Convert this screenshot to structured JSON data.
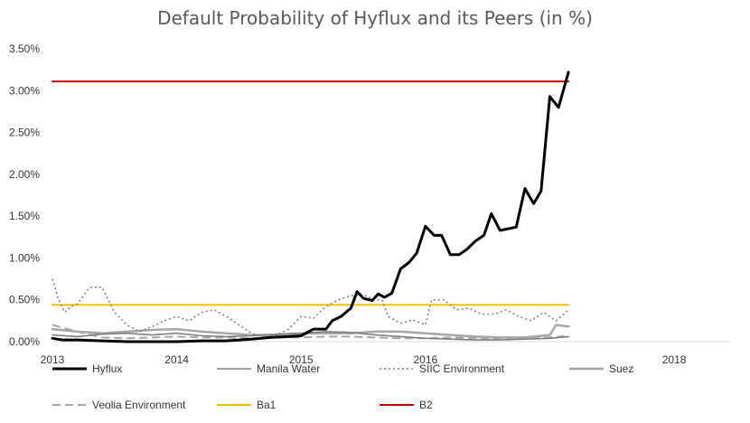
{
  "chart_data": {
    "type": "line",
    "title": "Default Probability of Hyflux and its Peers (in %)",
    "xlabel": "",
    "ylabel": "",
    "x_tick_labels": [
      "2013",
      "2014",
      "2015",
      "2016",
      "2018"
    ],
    "x_tick_positions": [
      2013.0,
      2014.0,
      2015.0,
      2016.0,
      2018.0
    ],
    "xlim": [
      2013.0,
      2018.45
    ],
    "y_tick_labels": [
      "0.00%",
      "0.50%",
      "1.00%",
      "1.50%",
      "2.00%",
      "2.50%",
      "3.00%",
      "3.50%"
    ],
    "y_tick_values": [
      0,
      0.5,
      1.0,
      1.5,
      2.0,
      2.5,
      3.0,
      3.5
    ],
    "ylim": [
      0,
      3.5
    ],
    "grid": false,
    "legend_position": "bottom",
    "series": [
      {
        "name": "Hyflux",
        "style": "solid",
        "color": "#000000",
        "width": 3,
        "points": [
          [
            2013.0,
            0.04
          ],
          [
            2013.08,
            0.02
          ],
          [
            2013.2,
            0.02
          ],
          [
            2013.4,
            0.01
          ],
          [
            2013.6,
            0.0
          ],
          [
            2013.8,
            0.0
          ],
          [
            2014.0,
            0.0
          ],
          [
            2014.2,
            0.01
          ],
          [
            2014.4,
            0.01
          ],
          [
            2014.6,
            0.03
          ],
          [
            2014.75,
            0.05
          ],
          [
            2014.9,
            0.06
          ],
          [
            2015.0,
            0.07
          ],
          [
            2015.1,
            0.15
          ],
          [
            2015.2,
            0.15
          ],
          [
            2015.25,
            0.25
          ],
          [
            2015.32,
            0.3
          ],
          [
            2015.4,
            0.4
          ],
          [
            2015.45,
            0.6
          ],
          [
            2015.5,
            0.52
          ],
          [
            2015.57,
            0.49
          ],
          [
            2015.62,
            0.57
          ],
          [
            2015.67,
            0.53
          ],
          [
            2015.73,
            0.58
          ],
          [
            2015.8,
            0.87
          ],
          [
            2015.87,
            0.95
          ],
          [
            2015.93,
            1.06
          ],
          [
            2016.0,
            1.38
          ],
          [
            2016.07,
            1.27
          ],
          [
            2016.13,
            1.27
          ],
          [
            2016.2,
            1.04
          ],
          [
            2016.27,
            1.04
          ],
          [
            2016.33,
            1.1
          ],
          [
            2016.4,
            1.2
          ],
          [
            2016.47,
            1.27
          ],
          [
            2016.53,
            1.53
          ],
          [
            2016.6,
            1.33
          ],
          [
            2016.67,
            1.35
          ],
          [
            2016.73,
            1.37
          ],
          [
            2016.8,
            1.83
          ],
          [
            2016.87,
            1.65
          ],
          [
            2016.93,
            1.8
          ],
          [
            2017.0,
            2.93
          ],
          [
            2017.07,
            2.8
          ],
          [
            2017.15,
            3.22
          ]
        ]
      },
      {
        "name": "Manila Water",
        "style": "solid",
        "color": "#7f7f7f",
        "width": 1.6,
        "points": [
          [
            2013.0,
            0.08
          ],
          [
            2013.2,
            0.06
          ],
          [
            2013.4,
            0.09
          ],
          [
            2013.6,
            0.1
          ],
          [
            2013.8,
            0.08
          ],
          [
            2014.0,
            0.1
          ],
          [
            2014.2,
            0.07
          ],
          [
            2014.4,
            0.06
          ],
          [
            2014.6,
            0.07
          ],
          [
            2014.8,
            0.09
          ],
          [
            2015.0,
            0.1
          ],
          [
            2015.2,
            0.12
          ],
          [
            2015.4,
            0.11
          ],
          [
            2015.6,
            0.08
          ],
          [
            2015.8,
            0.06
          ],
          [
            2016.0,
            0.04
          ],
          [
            2016.2,
            0.03
          ],
          [
            2016.4,
            0.02
          ],
          [
            2016.6,
            0.02
          ],
          [
            2016.8,
            0.03
          ],
          [
            2017.0,
            0.04
          ],
          [
            2017.15,
            0.06
          ]
        ]
      },
      {
        "name": "SIIC Environment",
        "style": "dotted",
        "color": "#7f7f7f",
        "width": 1.6,
        "points": [
          [
            2013.0,
            0.75
          ],
          [
            2013.05,
            0.5
          ],
          [
            2013.1,
            0.35
          ],
          [
            2013.15,
            0.42
          ],
          [
            2013.2,
            0.45
          ],
          [
            2013.3,
            0.65
          ],
          [
            2013.4,
            0.65
          ],
          [
            2013.5,
            0.35
          ],
          [
            2013.6,
            0.2
          ],
          [
            2013.7,
            0.12
          ],
          [
            2013.8,
            0.18
          ],
          [
            2013.9,
            0.25
          ],
          [
            2014.0,
            0.3
          ],
          [
            2014.1,
            0.25
          ],
          [
            2014.2,
            0.35
          ],
          [
            2014.3,
            0.38
          ],
          [
            2014.4,
            0.3
          ],
          [
            2014.5,
            0.2
          ],
          [
            2014.6,
            0.1
          ],
          [
            2014.7,
            0.05
          ],
          [
            2014.8,
            0.08
          ],
          [
            2014.9,
            0.15
          ],
          [
            2015.0,
            0.3
          ],
          [
            2015.1,
            0.28
          ],
          [
            2015.2,
            0.42
          ],
          [
            2015.3,
            0.5
          ],
          [
            2015.4,
            0.55
          ],
          [
            2015.5,
            0.56
          ],
          [
            2015.6,
            0.5
          ],
          [
            2015.65,
            0.5
          ],
          [
            2015.7,
            0.3
          ],
          [
            2015.8,
            0.22
          ],
          [
            2015.9,
            0.26
          ],
          [
            2016.0,
            0.2
          ],
          [
            2016.05,
            0.5
          ],
          [
            2016.15,
            0.5
          ],
          [
            2016.25,
            0.38
          ],
          [
            2016.35,
            0.4
          ],
          [
            2016.45,
            0.33
          ],
          [
            2016.55,
            0.33
          ],
          [
            2016.65,
            0.38
          ],
          [
            2016.75,
            0.3
          ],
          [
            2016.85,
            0.25
          ],
          [
            2016.95,
            0.35
          ],
          [
            2017.05,
            0.25
          ],
          [
            2017.15,
            0.38
          ]
        ]
      },
      {
        "name": "Suez",
        "style": "solid",
        "color": "#a6a6a6",
        "width": 2.5,
        "points": [
          [
            2013.0,
            0.15
          ],
          [
            2013.2,
            0.12
          ],
          [
            2013.4,
            0.1
          ],
          [
            2013.6,
            0.12
          ],
          [
            2013.8,
            0.14
          ],
          [
            2014.0,
            0.15
          ],
          [
            2014.2,
            0.12
          ],
          [
            2014.4,
            0.1
          ],
          [
            2014.6,
            0.08
          ],
          [
            2014.8,
            0.08
          ],
          [
            2015.0,
            0.1
          ],
          [
            2015.2,
            0.1
          ],
          [
            2015.4,
            0.1
          ],
          [
            2015.6,
            0.12
          ],
          [
            2015.8,
            0.12
          ],
          [
            2016.0,
            0.1
          ],
          [
            2016.2,
            0.08
          ],
          [
            2016.4,
            0.06
          ],
          [
            2016.6,
            0.05
          ],
          [
            2016.8,
            0.05
          ],
          [
            2017.0,
            0.08
          ],
          [
            2017.05,
            0.2
          ],
          [
            2017.15,
            0.18
          ]
        ]
      },
      {
        "name": "Veolia Environment",
        "style": "dashed",
        "color": "#a6a6a6",
        "width": 2,
        "points": [
          [
            2013.0,
            0.2
          ],
          [
            2013.2,
            0.12
          ],
          [
            2013.4,
            0.05
          ],
          [
            2013.6,
            0.04
          ],
          [
            2013.8,
            0.05
          ],
          [
            2014.0,
            0.06
          ],
          [
            2014.2,
            0.05
          ],
          [
            2014.4,
            0.05
          ],
          [
            2014.6,
            0.04
          ],
          [
            2014.8,
            0.05
          ],
          [
            2015.0,
            0.05
          ],
          [
            2015.2,
            0.06
          ],
          [
            2015.4,
            0.06
          ],
          [
            2015.6,
            0.05
          ],
          [
            2015.8,
            0.04
          ],
          [
            2016.0,
            0.04
          ],
          [
            2016.2,
            0.05
          ],
          [
            2016.4,
            0.04
          ],
          [
            2016.6,
            0.04
          ],
          [
            2016.8,
            0.05
          ],
          [
            2017.0,
            0.05
          ],
          [
            2017.15,
            0.07
          ]
        ]
      },
      {
        "name": "Ba1",
        "style": "solid",
        "color": "#f5c000",
        "width": 2,
        "points": [
          [
            2013.0,
            0.44
          ],
          [
            2017.15,
            0.44
          ]
        ]
      },
      {
        "name": "B2",
        "style": "solid",
        "color": "#c00000",
        "width": 2,
        "points": [
          [
            2013.0,
            3.11
          ],
          [
            2017.15,
            3.11
          ]
        ]
      }
    ]
  }
}
